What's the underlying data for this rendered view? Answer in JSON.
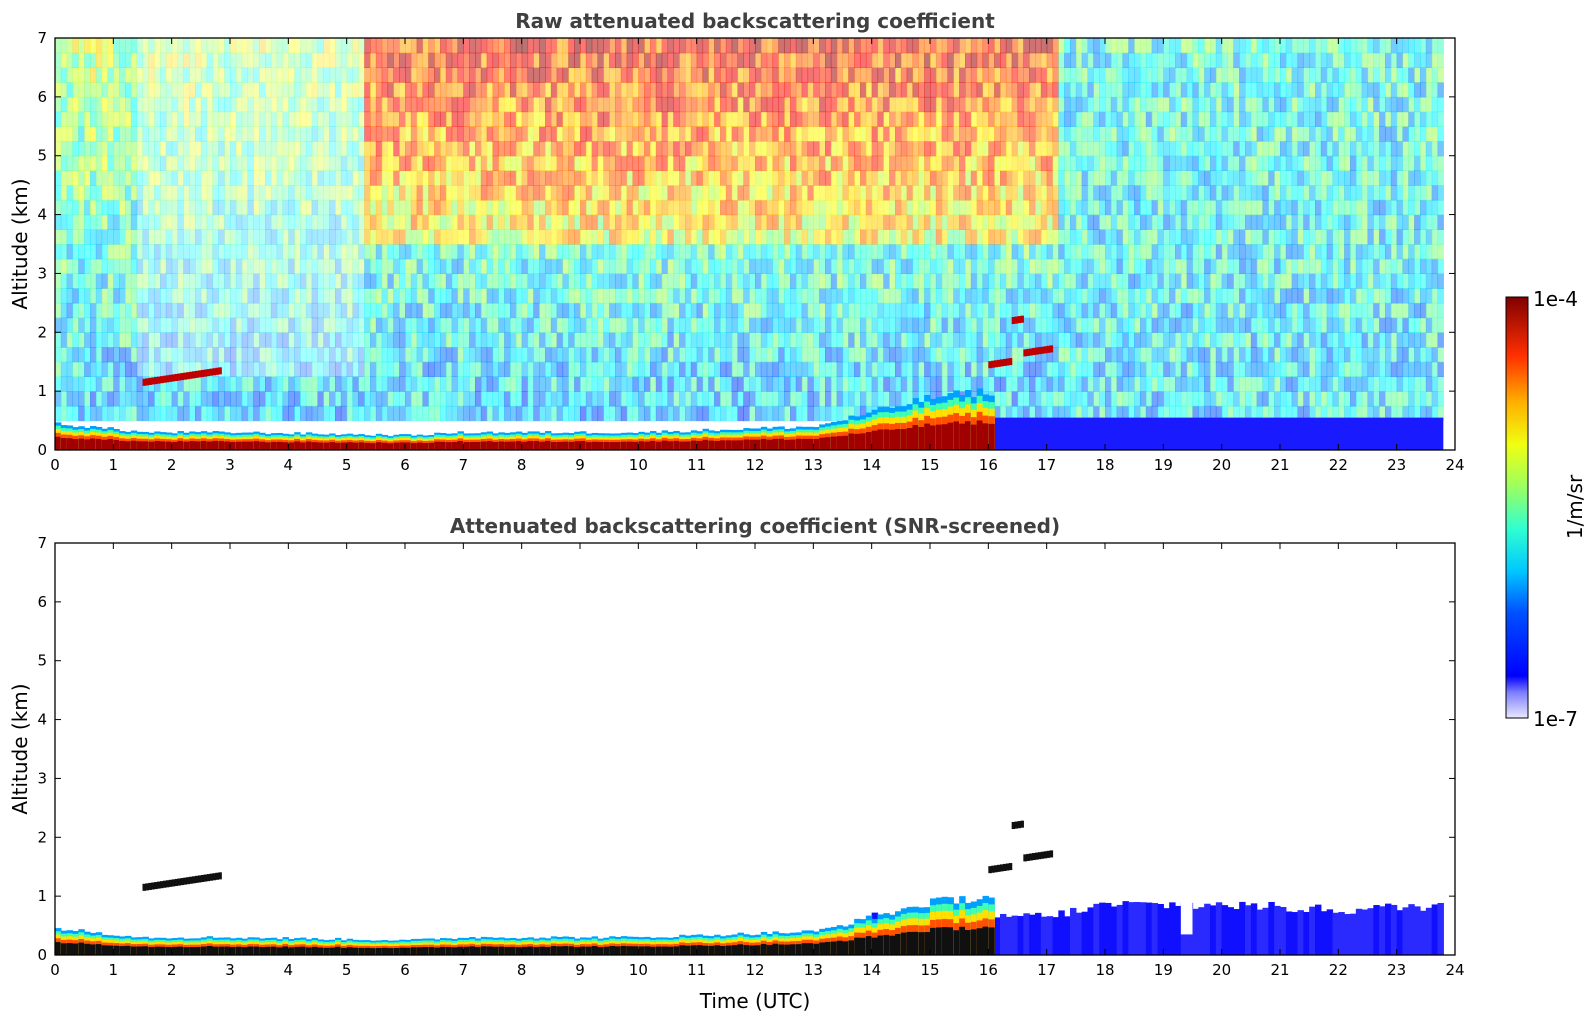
{
  "chart_data": [
    {
      "type": "heatmap",
      "title": "Raw attenuated backscattering coefficient",
      "xlabel": "",
      "ylabel": "Altitude (km)",
      "xlim": [
        0,
        24
      ],
      "ylim": [
        0,
        7
      ],
      "xticks": [
        "0",
        "1",
        "2",
        "3",
        "4",
        "5",
        "6",
        "7",
        "8",
        "9",
        "10",
        "11",
        "12",
        "13",
        "14",
        "15",
        "16",
        "17",
        "18",
        "19",
        "20",
        "21",
        "22",
        "23",
        "24"
      ],
      "yticks": [
        "0",
        "1",
        "2",
        "3",
        "4",
        "5",
        "6",
        "7"
      ],
      "x_data_end": 23.8,
      "layer_top_km": [
        {
          "x": 0,
          "y": 0.45
        },
        {
          "x": 1.5,
          "y": 0.3
        },
        {
          "x": 3,
          "y": 0.3
        },
        {
          "x": 6,
          "y": 0.25
        },
        {
          "x": 7,
          "y": 0.3
        },
        {
          "x": 10,
          "y": 0.3
        },
        {
          "x": 13,
          "y": 0.4
        },
        {
          "x": 14,
          "y": 0.65
        },
        {
          "x": 15,
          "y": 0.9
        },
        {
          "x": 16,
          "y": 1.0
        }
      ],
      "elevated_layers": [
        {
          "x_start": 1.5,
          "x_end": 2.8,
          "y": 1.15
        },
        {
          "x_start": 16.0,
          "x_end": 16.4,
          "y": 1.45
        },
        {
          "x_start": 16.4,
          "x_end": 16.6,
          "y": 2.2
        },
        {
          "x_start": 16.6,
          "x_end": 17.1,
          "y": 1.65
        }
      ],
      "high_signal_region": {
        "x_start": 5.2,
        "x_end": 17.1,
        "y_min": 3.5,
        "y_max": 7
      }
    },
    {
      "type": "heatmap",
      "title": "Attenuated backscattering coefficient (SNR-screened)",
      "xlabel": "Time (UTC)",
      "ylabel": "Altitude (km)",
      "xlim": [
        0,
        24
      ],
      "ylim": [
        0,
        7
      ],
      "xticks": [
        "0",
        "1",
        "2",
        "3",
        "4",
        "5",
        "6",
        "7",
        "8",
        "9",
        "10",
        "11",
        "12",
        "13",
        "14",
        "15",
        "16",
        "17",
        "18",
        "19",
        "20",
        "21",
        "22",
        "23",
        "24"
      ],
      "yticks": [
        "0",
        "1",
        "2",
        "3",
        "4",
        "5",
        "6",
        "7"
      ],
      "x_data_end": 23.8,
      "layer_top_km": [
        {
          "x": 0,
          "y": 0.45
        },
        {
          "x": 1.5,
          "y": 0.3
        },
        {
          "x": 3,
          "y": 0.3
        },
        {
          "x": 6,
          "y": 0.25
        },
        {
          "x": 7,
          "y": 0.3
        },
        {
          "x": 10,
          "y": 0.3
        },
        {
          "x": 13,
          "y": 0.4
        },
        {
          "x": 14,
          "y": 0.65
        },
        {
          "x": 15,
          "y": 0.9
        },
        {
          "x": 16,
          "y": 1.0
        }
      ],
      "night_layer_top_km": [
        {
          "x": 17,
          "y": 0.7
        },
        {
          "x": 18,
          "y": 0.9
        },
        {
          "x": 20,
          "y": 0.9
        },
        {
          "x": 22,
          "y": 0.8
        },
        {
          "x": 23.8,
          "y": 0.9
        }
      ]
    }
  ],
  "colorbar": {
    "max_label": "1e-4",
    "min_label": "1e-7",
    "label": "1/m/sr",
    "scale": "log",
    "colormap": "jet"
  }
}
